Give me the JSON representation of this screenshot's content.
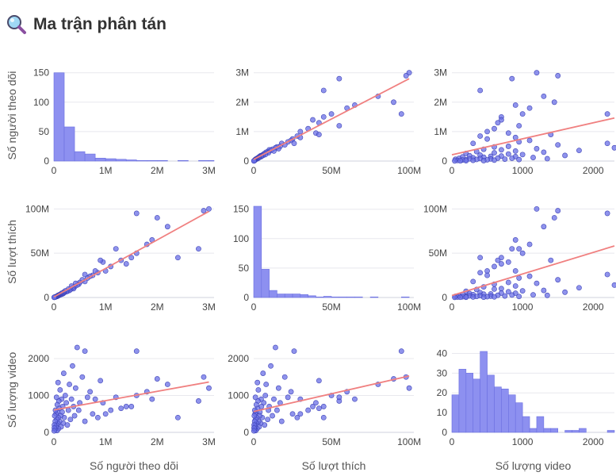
{
  "header": {
    "title": "Ma trận phân tán",
    "icon": "magnifier-icon"
  },
  "colors": {
    "points": "#6a6fe6",
    "point_stroke": "#3f44b8",
    "bars": "#8d90f0",
    "bar_stroke": "#6c70e0",
    "trend": "#f08080"
  },
  "chart_data": {
    "type": "scatter",
    "title": "Ma trận phân tán",
    "variables": [
      {
        "key": "followers",
        "label": "Số người theo dõi",
        "range": [
          0,
          3100000
        ],
        "ticks": [
          0,
          1000000,
          2000000,
          3000000
        ],
        "tick_labels": [
          "0",
          "1M",
          "2M",
          "3M"
        ]
      },
      {
        "key": "likes",
        "label": "Số lượt thích",
        "range": [
          0,
          103000000
        ],
        "ticks": [
          0,
          50000000,
          100000000
        ],
        "tick_labels": [
          "0",
          "50M",
          "100M"
        ]
      },
      {
        "key": "videos",
        "label": "Số lượng video",
        "range": [
          0,
          2300
        ],
        "ticks": [
          0,
          1000,
          2000
        ],
        "tick_labels": [
          "0",
          "1000",
          "2000"
        ]
      }
    ],
    "diagonal_histograms": [
      {
        "variable": "followers",
        "bin_width": 200000,
        "counts": [
          150,
          58,
          16,
          12,
          5,
          4,
          3,
          2,
          1,
          1,
          1,
          0,
          1,
          0,
          1,
          1
        ],
        "ylim": [
          0,
          155
        ],
        "ticks": [
          0,
          50,
          100,
          150
        ],
        "tick_labels": [
          "0",
          "50",
          "100",
          "150"
        ]
      },
      {
        "variable": "likes",
        "bin_width": 5000000,
        "counts": [
          155,
          48,
          12,
          6,
          6,
          6,
          5,
          3,
          1,
          2,
          1,
          1,
          1,
          1,
          0,
          1,
          0,
          0,
          0,
          1
        ],
        "ylim": [
          0,
          155
        ],
        "ticks": [
          0,
          50,
          100,
          150
        ],
        "tick_labels": [
          "0",
          "50",
          "100",
          "150"
        ]
      },
      {
        "variable": "videos",
        "bin_width": 100,
        "counts": [
          19,
          32,
          30,
          27,
          41,
          29,
          23,
          22,
          19,
          15,
          8,
          2,
          8,
          2,
          2,
          0,
          1,
          1,
          2,
          0,
          0,
          0,
          1
        ],
        "ylim": [
          0,
          43
        ],
        "ticks": [
          0,
          10,
          20,
          30,
          40
        ],
        "tick_labels": [
          "0",
          "10",
          "20",
          "30",
          "40"
        ]
      }
    ],
    "points": [
      {
        "followers": 3000000,
        "likes": 100000000,
        "videos": 1200
      },
      {
        "followers": 2900000,
        "likes": 98000000,
        "videos": 1500
      },
      {
        "followers": 2800000,
        "likes": 55000000,
        "videos": 850
      },
      {
        "followers": 2400000,
        "likes": 45000000,
        "videos": 400
      },
      {
        "followers": 2200000,
        "likes": 80000000,
        "videos": 1300
      },
      {
        "followers": 2000000,
        "likes": 90000000,
        "videos": 1450
      },
      {
        "followers": 1900000,
        "likes": 65000000,
        "videos": 900
      },
      {
        "followers": 1800000,
        "likes": 60000000,
        "videos": 1100
      },
      {
        "followers": 1600000,
        "likes": 50000000,
        "videos": 1000
      },
      {
        "followers": 1600000,
        "likes": 95000000,
        "videos": 2200
      },
      {
        "followers": 1500000,
        "likes": 45000000,
        "videos": 700
      },
      {
        "followers": 1400000,
        "likes": 38000000,
        "videos": 700
      },
      {
        "followers": 1300000,
        "likes": 42000000,
        "videos": 650
      },
      {
        "followers": 1200000,
        "likes": 55000000,
        "videos": 950
      },
      {
        "followers": 1100000,
        "likes": 35000000,
        "videos": 600
      },
      {
        "followers": 1000000,
        "likes": 30000000,
        "videos": 500
      },
      {
        "followers": 950000,
        "likes": 40000000,
        "videos": 800
      },
      {
        "followers": 900000,
        "likes": 42000000,
        "videos": 1400
      },
      {
        "followers": 850000,
        "likes": 28000000,
        "videos": 400
      },
      {
        "followers": 800000,
        "likes": 30000000,
        "videos": 900
      },
      {
        "followers": 750000,
        "likes": 25000000,
        "videos": 500
      },
      {
        "followers": 700000,
        "likes": 24000000,
        "videos": 1100
      },
      {
        "followers": 650000,
        "likes": 22000000,
        "videos": 950
      },
      {
        "followers": 600000,
        "likes": 18000000,
        "videos": 300
      },
      {
        "followers": 600000,
        "likes": 26000000,
        "videos": 2200
      },
      {
        "followers": 550000,
        "likes": 20000000,
        "videos": 1500
      },
      {
        "followers": 500000,
        "likes": 17000000,
        "videos": 800
      },
      {
        "followers": 480000,
        "likes": 15000000,
        "videos": 600
      },
      {
        "followers": 450000,
        "likes": 14000000,
        "videos": 2300
      },
      {
        "followers": 420000,
        "likes": 16000000,
        "videos": 1200
      },
      {
        "followers": 400000,
        "likes": 12000000,
        "videos": 450
      },
      {
        "followers": 380000,
        "likes": 10000000,
        "videos": 700
      },
      {
        "followers": 360000,
        "likes": 11000000,
        "videos": 1800
      },
      {
        "followers": 340000,
        "likes": 13000000,
        "videos": 900
      },
      {
        "followers": 320000,
        "likes": 9000000,
        "videos": 350
      },
      {
        "followers": 300000,
        "likes": 8000000,
        "videos": 1300
      },
      {
        "followers": 280000,
        "likes": 9500000,
        "videos": 600
      },
      {
        "followers": 260000,
        "likes": 7000000,
        "videos": 200
      },
      {
        "followers": 240000,
        "likes": 6500000,
        "videos": 800
      },
      {
        "followers": 220000,
        "likes": 7500000,
        "videos": 1000
      },
      {
        "followers": 200000,
        "likes": 5500000,
        "videos": 400
      },
      {
        "followers": 190000,
        "likes": 6000000,
        "videos": 1600
      },
      {
        "followers": 180000,
        "likes": 4500000,
        "videos": 250
      },
      {
        "followers": 170000,
        "likes": 5000000,
        "videos": 700
      },
      {
        "followers": 160000,
        "likes": 4000000,
        "videos": 550
      },
      {
        "followers": 150000,
        "likes": 4800000,
        "videos": 900
      },
      {
        "followers": 140000,
        "likes": 3500000,
        "videos": 150
      },
      {
        "followers": 130000,
        "likes": 3800000,
        "videos": 450
      },
      {
        "followers": 120000,
        "likes": 3000000,
        "videos": 1150
      },
      {
        "followers": 110000,
        "likes": 3200000,
        "videos": 300
      },
      {
        "followers": 100000,
        "likes": 2500000,
        "videos": 650
      },
      {
        "followers": 95000,
        "likes": 2800000,
        "videos": 850
      },
      {
        "followers": 90000,
        "likes": 2200000,
        "videos": 100
      },
      {
        "followers": 85000,
        "likes": 2000000,
        "videos": 400
      },
      {
        "followers": 80000,
        "likes": 2400000,
        "videos": 1350
      },
      {
        "followers": 75000,
        "likes": 1800000,
        "videos": 250
      },
      {
        "followers": 70000,
        "likes": 1500000,
        "videos": 550
      },
      {
        "followers": 65000,
        "likes": 1700000,
        "videos": 750
      },
      {
        "followers": 60000,
        "likes": 1300000,
        "videos": 50
      },
      {
        "followers": 55000,
        "likes": 1200000,
        "videos": 350
      },
      {
        "followers": 50000,
        "likes": 1100000,
        "videos": 950
      },
      {
        "followers": 45000,
        "likes": 1000000,
        "videos": 200
      },
      {
        "followers": 40000,
        "likes": 900000,
        "videos": 500
      },
      {
        "followers": 35000,
        "likes": 800000,
        "videos": 150
      },
      {
        "followers": 30000,
        "likes": 700000,
        "videos": 600
      },
      {
        "followers": 25000,
        "likes": 600000,
        "videos": 300
      },
      {
        "followers": 20000,
        "likes": 500000,
        "videos": 80
      },
      {
        "followers": 15000,
        "likes": 400000,
        "videos": 450
      },
      {
        "followers": 10000,
        "likes": 300000,
        "videos": 200
      },
      {
        "followers": 8000,
        "likes": 200000,
        "videos": 120
      },
      {
        "followers": 5000,
        "likes": 150000,
        "videos": 40
      }
    ]
  }
}
